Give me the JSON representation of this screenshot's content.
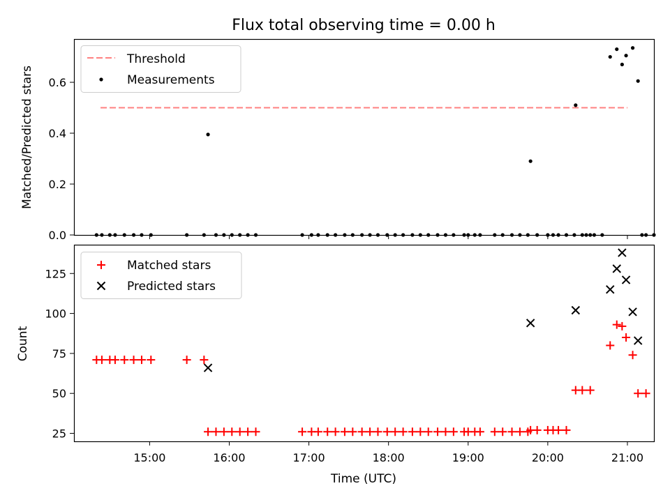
{
  "title": "Flux total observing time = 0.00 h",
  "colors": {
    "threshold": "#ff8080",
    "matched": "#ff0000",
    "predicted": "#000000",
    "measurement": "#000000"
  },
  "chart_data": [
    {
      "type": "line",
      "panel": "top",
      "ylabel": "Matched/Predicted stars",
      "ylim": [
        0,
        0.77
      ],
      "yticks": [
        0.0,
        0.2,
        0.4,
        0.6
      ],
      "ytick_labels": [
        "0.0",
        "0.2",
        "0.4",
        "0.6"
      ],
      "legend_position": "upper-left",
      "legend": [
        "Threshold",
        "Measurements"
      ],
      "threshold": {
        "name": "Threshold",
        "value": 0.5,
        "x_range": [
          "14:23",
          "21:00"
        ],
        "style": "dashed"
      },
      "series": [
        {
          "name": "Measurements",
          "points": [
            [
              "14:20",
              0
            ],
            [
              "14:24",
              0
            ],
            [
              "14:30",
              0
            ],
            [
              "14:34",
              0
            ],
            [
              "14:41",
              0
            ],
            [
              "14:48",
              0
            ],
            [
              "14:54",
              0
            ],
            [
              "15:01",
              0
            ],
            [
              "15:28",
              0
            ],
            [
              "15:41",
              0
            ],
            [
              "15:44",
              0.395
            ],
            [
              "15:50",
              0
            ],
            [
              "15:56",
              0
            ],
            [
              "16:02",
              0
            ],
            [
              "16:08",
              0
            ],
            [
              "16:14",
              0
            ],
            [
              "16:20",
              0
            ],
            [
              "16:55",
              0
            ],
            [
              "17:02",
              0
            ],
            [
              "17:07",
              0
            ],
            [
              "17:14",
              0
            ],
            [
              "17:20",
              0
            ],
            [
              "17:27",
              0
            ],
            [
              "17:33",
              0
            ],
            [
              "17:40",
              0
            ],
            [
              "17:46",
              0
            ],
            [
              "17:52",
              0
            ],
            [
              "17:59",
              0
            ],
            [
              "18:05",
              0
            ],
            [
              "18:11",
              0
            ],
            [
              "18:18",
              0
            ],
            [
              "18:24",
              0
            ],
            [
              "18:30",
              0
            ],
            [
              "18:37",
              0
            ],
            [
              "18:43",
              0
            ],
            [
              "18:49",
              0
            ],
            [
              "18:57",
              0
            ],
            [
              "19:00",
              0
            ],
            [
              "19:05",
              0
            ],
            [
              "19:09",
              0
            ],
            [
              "19:20",
              0
            ],
            [
              "19:26",
              0
            ],
            [
              "19:33",
              0
            ],
            [
              "19:39",
              0
            ],
            [
              "19:45",
              0
            ],
            [
              "19:47",
              0.29
            ],
            [
              "19:52",
              0
            ],
            [
              "20:00",
              0
            ],
            [
              "20:04",
              0
            ],
            [
              "20:08",
              0
            ],
            [
              "20:14",
              0
            ],
            [
              "20:20",
              0
            ],
            [
              "20:26",
              0
            ],
            [
              "20:29",
              0
            ],
            [
              "20:32",
              0
            ],
            [
              "20:35",
              0
            ],
            [
              "20:41",
              0
            ],
            [
              "20:21",
              0.51
            ],
            [
              "20:47",
              0.7
            ],
            [
              "20:52",
              0.73
            ],
            [
              "20:56",
              0.67
            ],
            [
              "20:59",
              0.705
            ],
            [
              "21:04",
              0.735
            ],
            [
              "21:08",
              0.605
            ],
            [
              "21:11",
              0
            ],
            [
              "21:14",
              0
            ],
            [
              "21:20",
              0
            ]
          ]
        }
      ]
    },
    {
      "type": "scatter",
      "panel": "bottom",
      "xlabel": "Time (UTC)",
      "ylabel": "Count",
      "ylim": [
        20,
        143
      ],
      "yticks": [
        25,
        50,
        75,
        100,
        125
      ],
      "xlim": [
        "14:03",
        "21:20"
      ],
      "xticks": [
        "15:00",
        "16:00",
        "17:00",
        "18:00",
        "19:00",
        "20:00",
        "21:00"
      ],
      "legend_position": "upper-left",
      "legend": [
        "Matched stars",
        "Predicted stars"
      ],
      "series": [
        {
          "name": "Matched stars",
          "marker": "+",
          "points": [
            [
              "14:20",
              71
            ],
            [
              "14:24",
              71
            ],
            [
              "14:30",
              71
            ],
            [
              "14:34",
              71
            ],
            [
              "14:41",
              71
            ],
            [
              "14:48",
              71
            ],
            [
              "14:54",
              71
            ],
            [
              "15:01",
              71
            ],
            [
              "15:28",
              71
            ],
            [
              "15:41",
              71
            ],
            [
              "15:44",
              26
            ],
            [
              "15:50",
              26
            ],
            [
              "15:56",
              26
            ],
            [
              "16:02",
              26
            ],
            [
              "16:08",
              26
            ],
            [
              "16:14",
              26
            ],
            [
              "16:20",
              26
            ],
            [
              "16:55",
              26
            ],
            [
              "17:02",
              26
            ],
            [
              "17:07",
              26
            ],
            [
              "17:14",
              26
            ],
            [
              "17:20",
              26
            ],
            [
              "17:27",
              26
            ],
            [
              "17:33",
              26
            ],
            [
              "17:40",
              26
            ],
            [
              "17:46",
              26
            ],
            [
              "17:52",
              26
            ],
            [
              "17:59",
              26
            ],
            [
              "18:05",
              26
            ],
            [
              "18:11",
              26
            ],
            [
              "18:18",
              26
            ],
            [
              "18:24",
              26
            ],
            [
              "18:30",
              26
            ],
            [
              "18:37",
              26
            ],
            [
              "18:43",
              26
            ],
            [
              "18:49",
              26
            ],
            [
              "18:57",
              26
            ],
            [
              "19:00",
              26
            ],
            [
              "19:05",
              26
            ],
            [
              "19:09",
              26
            ],
            [
              "19:20",
              26
            ],
            [
              "19:26",
              26
            ],
            [
              "19:33",
              26
            ],
            [
              "19:39",
              26
            ],
            [
              "19:45",
              26
            ],
            [
              "19:47",
              27
            ],
            [
              "19:52",
              27
            ],
            [
              "20:00",
              27
            ],
            [
              "20:04",
              27
            ],
            [
              "20:08",
              27
            ],
            [
              "20:14",
              27
            ],
            [
              "20:21",
              52
            ],
            [
              "20:26",
              52
            ],
            [
              "20:32",
              52
            ],
            [
              "20:47",
              80
            ],
            [
              "20:52",
              93
            ],
            [
              "20:56",
              92
            ],
            [
              "20:59",
              85
            ],
            [
              "21:04",
              74
            ],
            [
              "21:08",
              50
            ],
            [
              "21:14",
              50
            ]
          ]
        },
        {
          "name": "Predicted stars",
          "marker": "x",
          "points": [
            [
              "15:44",
              66
            ],
            [
              "19:47",
              94
            ],
            [
              "20:21",
              102
            ],
            [
              "20:47",
              115
            ],
            [
              "20:52",
              128
            ],
            [
              "20:56",
              138
            ],
            [
              "20:59",
              121
            ],
            [
              "21:04",
              101
            ],
            [
              "21:08",
              83
            ]
          ]
        }
      ]
    }
  ]
}
